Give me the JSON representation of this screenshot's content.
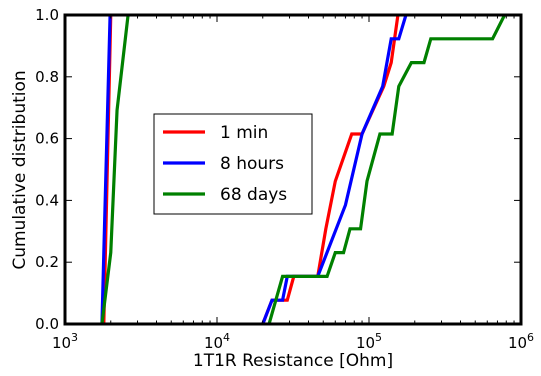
{
  "chart_data": {
    "type": "line",
    "step": true,
    "xscale": "log",
    "xlim": [
      1000,
      1000000
    ],
    "ylim": [
      0,
      1
    ],
    "xlabel": "1T1R Resistance [Ohm]",
    "ylabel": "Cumulative distribution",
    "grid": false,
    "legend_position": "center-left",
    "x_ticks": [
      {
        "value": 1000,
        "base": "10",
        "exp": "3"
      },
      {
        "value": 10000,
        "base": "10",
        "exp": "4"
      },
      {
        "value": 100000,
        "base": "10",
        "exp": "5"
      },
      {
        "value": 1000000,
        "base": "10",
        "exp": "6"
      }
    ],
    "y_ticks": [
      {
        "value": 0,
        "label": "0.0"
      },
      {
        "value": 0.2,
        "label": "0.2"
      },
      {
        "value": 0.4,
        "label": "0.4"
      },
      {
        "value": 0.6,
        "label": "0.6"
      },
      {
        "value": 0.8,
        "label": "0.8"
      },
      {
        "value": 1,
        "label": "1.0"
      }
    ],
    "series": [
      {
        "name": "1 min",
        "color": "#ff0000",
        "points": [
          [
            1800,
            0.0
          ],
          [
            2000,
            1.0
          ],
          [
            2020,
            1.0
          ],
          [
            20000,
            0.0
          ],
          [
            23000,
            0.077
          ],
          [
            26000,
            0.077
          ],
          [
            29000,
            0.077
          ],
          [
            32000,
            0.154
          ],
          [
            46000,
            0.154
          ],
          [
            52000,
            0.308
          ],
          [
            60000,
            0.462
          ],
          [
            77000,
            0.615
          ],
          [
            90000,
            0.615
          ],
          [
            125000,
            0.769
          ],
          [
            140000,
            0.846
          ],
          [
            155000,
            1.0
          ]
        ]
      },
      {
        "name": "8 hours",
        "color": "#0000ff",
        "points": [
          [
            1750,
            0.0
          ],
          [
            1980,
            1.0
          ],
          [
            2000,
            1.0
          ],
          [
            20000,
            0.0
          ],
          [
            23000,
            0.077
          ],
          [
            27000,
            0.077
          ],
          [
            29000,
            0.154
          ],
          [
            46000,
            0.154
          ],
          [
            70000,
            0.385
          ],
          [
            90000,
            0.615
          ],
          [
            123000,
            0.769
          ],
          [
            140000,
            0.923
          ],
          [
            157000,
            0.923
          ],
          [
            175000,
            1.0
          ]
        ]
      },
      {
        "name": "68 days",
        "color": "#008000",
        "points": [
          [
            1750,
            0.0
          ],
          [
            2000,
            0.231
          ],
          [
            2200,
            0.692
          ],
          [
            2600,
            1.0
          ],
          [
            2650,
            1.0
          ],
          [
            22000,
            0.0
          ],
          [
            27000,
            0.154
          ],
          [
            46000,
            0.154
          ],
          [
            53000,
            0.154
          ],
          [
            60000,
            0.231
          ],
          [
            68000,
            0.231
          ],
          [
            75000,
            0.308
          ],
          [
            88000,
            0.308
          ],
          [
            97000,
            0.462
          ],
          [
            118000,
            0.615
          ],
          [
            142000,
            0.615
          ],
          [
            157000,
            0.769
          ],
          [
            190000,
            0.846
          ],
          [
            230000,
            0.846
          ],
          [
            255000,
            0.923
          ],
          [
            650000,
            0.923
          ],
          [
            780000,
            1.0
          ]
        ]
      }
    ]
  }
}
